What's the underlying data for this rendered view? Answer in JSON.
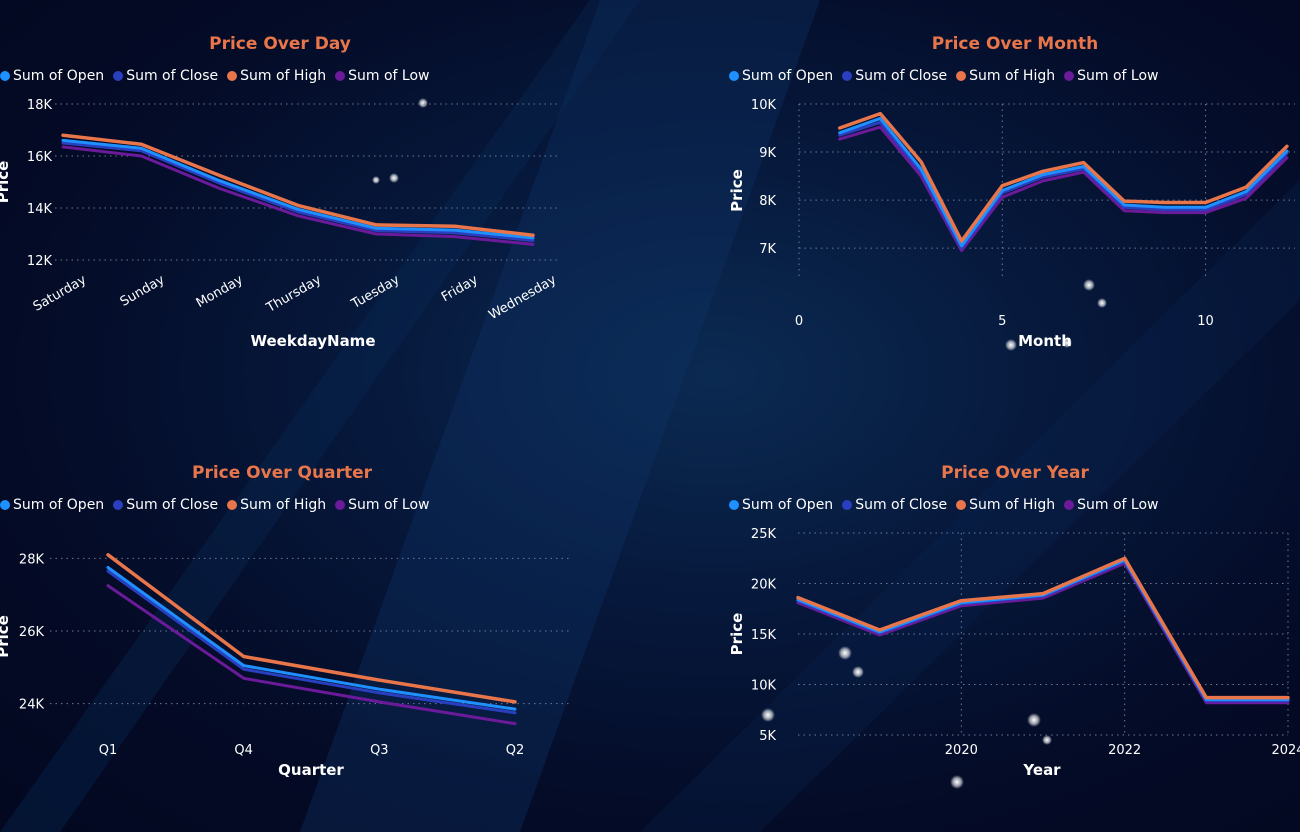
{
  "colors": {
    "open": "#1e90ff",
    "close": "#2a3fc0",
    "high": "#e8764a",
    "low": "#6b1a9a",
    "title": "#e8764a",
    "grid": "#6b7a96"
  },
  "legend": {
    "items": [
      {
        "label": "Sum of Open",
        "color_key": "open"
      },
      {
        "label": "Sum of Close",
        "color_key": "close"
      },
      {
        "label": "Sum of High",
        "color_key": "high"
      },
      {
        "label": "Sum of Low",
        "color_key": "low"
      }
    ]
  },
  "chart_data": [
    {
      "id": "day",
      "type": "line",
      "title": "Price Over Day",
      "xlabel": "WeekdayName",
      "ylabel": "Price",
      "x_type": "category",
      "categories": [
        "Saturday",
        "Sunday",
        "Monday",
        "Thursday",
        "Tuesday",
        "Friday",
        "Wednesday"
      ],
      "rotate_ticks": true,
      "ylim": [
        12000,
        18000
      ],
      "yticks": [
        12000,
        14000,
        16000,
        18000
      ],
      "ytick_labels": [
        "12K",
        "14K",
        "16K",
        "18K"
      ],
      "grid": "horizontal",
      "series": [
        {
          "name": "Sum of High",
          "key": "high",
          "values": [
            16800,
            16450,
            15250,
            14100,
            13350,
            13300,
            12950
          ]
        },
        {
          "name": "Sum of Open",
          "key": "open",
          "values": [
            16600,
            16300,
            15050,
            13950,
            13220,
            13150,
            12850
          ]
        },
        {
          "name": "Sum of Close",
          "key": "close",
          "values": [
            16500,
            16200,
            14950,
            13850,
            13130,
            13050,
            12750
          ]
        },
        {
          "name": "Sum of Low",
          "key": "low",
          "values": [
            16350,
            16000,
            14750,
            13700,
            13000,
            12900,
            12600
          ]
        }
      ]
    },
    {
      "id": "month",
      "type": "line",
      "title": "Price Over Month",
      "xlabel": "Month",
      "ylabel": "Price",
      "x_type": "numeric",
      "xlim": [
        0,
        12.2
      ],
      "xticks": [
        0,
        5,
        10
      ],
      "xtick_labels": [
        "0",
        "5",
        "10"
      ],
      "x": [
        1,
        2,
        3,
        4,
        5,
        6,
        7,
        8,
        9,
        10,
        11,
        12
      ],
      "ylim": [
        6400,
        10000
      ],
      "yticks": [
        7000,
        8000,
        9000,
        10000
      ],
      "ytick_labels": [
        "7K",
        "8K",
        "9K",
        "10K"
      ],
      "grid": "both",
      "series": [
        {
          "name": "Sum of High",
          "key": "high",
          "values": [
            9500,
            9800,
            8800,
            7150,
            8300,
            8600,
            8780,
            7980,
            7950,
            7950,
            8270,
            9120
          ]
        },
        {
          "name": "Sum of Open",
          "key": "open",
          "values": [
            9400,
            9700,
            8650,
            7050,
            8200,
            8530,
            8700,
            7900,
            7850,
            7850,
            8180,
            9020
          ]
        },
        {
          "name": "Sum of Close",
          "key": "close",
          "values": [
            9350,
            9620,
            8580,
            7000,
            8150,
            8480,
            8650,
            7850,
            7800,
            7800,
            8120,
            8970
          ]
        },
        {
          "name": "Sum of Low",
          "key": "low",
          "values": [
            9270,
            9520,
            8500,
            6950,
            8060,
            8400,
            8580,
            7780,
            7740,
            7740,
            8040,
            8880
          ]
        }
      ]
    },
    {
      "id": "quarter",
      "type": "line",
      "title": "Price Over Quarter",
      "xlabel": "Quarter",
      "ylabel": "Price",
      "x_type": "category",
      "categories": [
        "Q1",
        "Q4",
        "Q3",
        "Q2"
      ],
      "rotate_ticks": false,
      "ylim": [
        23000,
        28700
      ],
      "yticks": [
        24000,
        26000,
        28000
      ],
      "ytick_labels": [
        "24K",
        "26K",
        "28K"
      ],
      "grid": "horizontal",
      "series": [
        {
          "name": "Sum of High",
          "key": "high",
          "values": [
            28100,
            25300,
            24650,
            24050
          ]
        },
        {
          "name": "Sum of Open",
          "key": "open",
          "values": [
            27750,
            25050,
            24400,
            23850
          ]
        },
        {
          "name": "Sum of Close",
          "key": "close",
          "values": [
            27650,
            24950,
            24300,
            23750
          ]
        },
        {
          "name": "Sum of Low",
          "key": "low",
          "values": [
            27250,
            24700,
            24050,
            23450
          ]
        }
      ]
    },
    {
      "id": "year",
      "type": "line",
      "title": "Price Over Year",
      "xlabel": "Year",
      "ylabel": "Price",
      "x_type": "numeric",
      "xlim": [
        2018,
        2024
      ],
      "xticks": [
        2020,
        2022,
        2024
      ],
      "xtick_labels": [
        "2020",
        "2022",
        "2024"
      ],
      "x": [
        2018,
        2019,
        2020,
        2021,
        2022,
        2023,
        2024
      ],
      "ylim": [
        5000,
        25000
      ],
      "yticks": [
        5000,
        10000,
        15000,
        20000,
        25000
      ],
      "ytick_labels": [
        "5K",
        "10K",
        "15K",
        "20K",
        "25K"
      ],
      "grid": "both",
      "series": [
        {
          "name": "Sum of High",
          "key": "high",
          "values": [
            18600,
            15400,
            18300,
            19000,
            22500,
            8700,
            8700
          ]
        },
        {
          "name": "Sum of Open",
          "key": "open",
          "values": [
            18400,
            15200,
            18100,
            18850,
            22300,
            8500,
            8500
          ]
        },
        {
          "name": "Sum of Close",
          "key": "close",
          "values": [
            18300,
            15100,
            18000,
            18750,
            22200,
            8400,
            8400
          ]
        },
        {
          "name": "Sum of Low",
          "key": "low",
          "values": [
            18100,
            14900,
            17800,
            18550,
            22000,
            8200,
            8200
          ]
        }
      ]
    }
  ]
}
